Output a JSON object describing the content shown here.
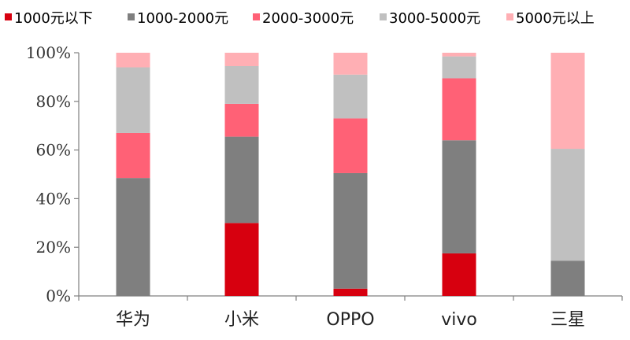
{
  "chart_data": {
    "type": "bar",
    "stacked": true,
    "categories": [
      "华为",
      "小米",
      "OPPO",
      "vivo",
      "三星"
    ],
    "series": [
      {
        "name": "1000元以下",
        "color": "#d7000f",
        "values": [
          0,
          30,
          3,
          17.5,
          0
        ]
      },
      {
        "name": "1000-2000元",
        "color": "#7f7f7f",
        "values": [
          48.5,
          35.5,
          47.5,
          46.5,
          14.5
        ]
      },
      {
        "name": "2000-3000元",
        "color": "#ff6176",
        "values": [
          18.5,
          13.5,
          22.5,
          25.5,
          0
        ]
      },
      {
        "name": "3000-5000元",
        "color": "#c0c0c0",
        "values": [
          27,
          15.5,
          18,
          9,
          46
        ]
      },
      {
        "name": "5000元以上",
        "color": "#ffafb4",
        "values": [
          6,
          5.5,
          9,
          1.5,
          39.5
        ]
      }
    ],
    "ylim": [
      0,
      100
    ],
    "yticks": [
      "0%",
      "20%",
      "40%",
      "60%",
      "80%",
      "100%"
    ],
    "legend_position": "top",
    "grid": false
  }
}
